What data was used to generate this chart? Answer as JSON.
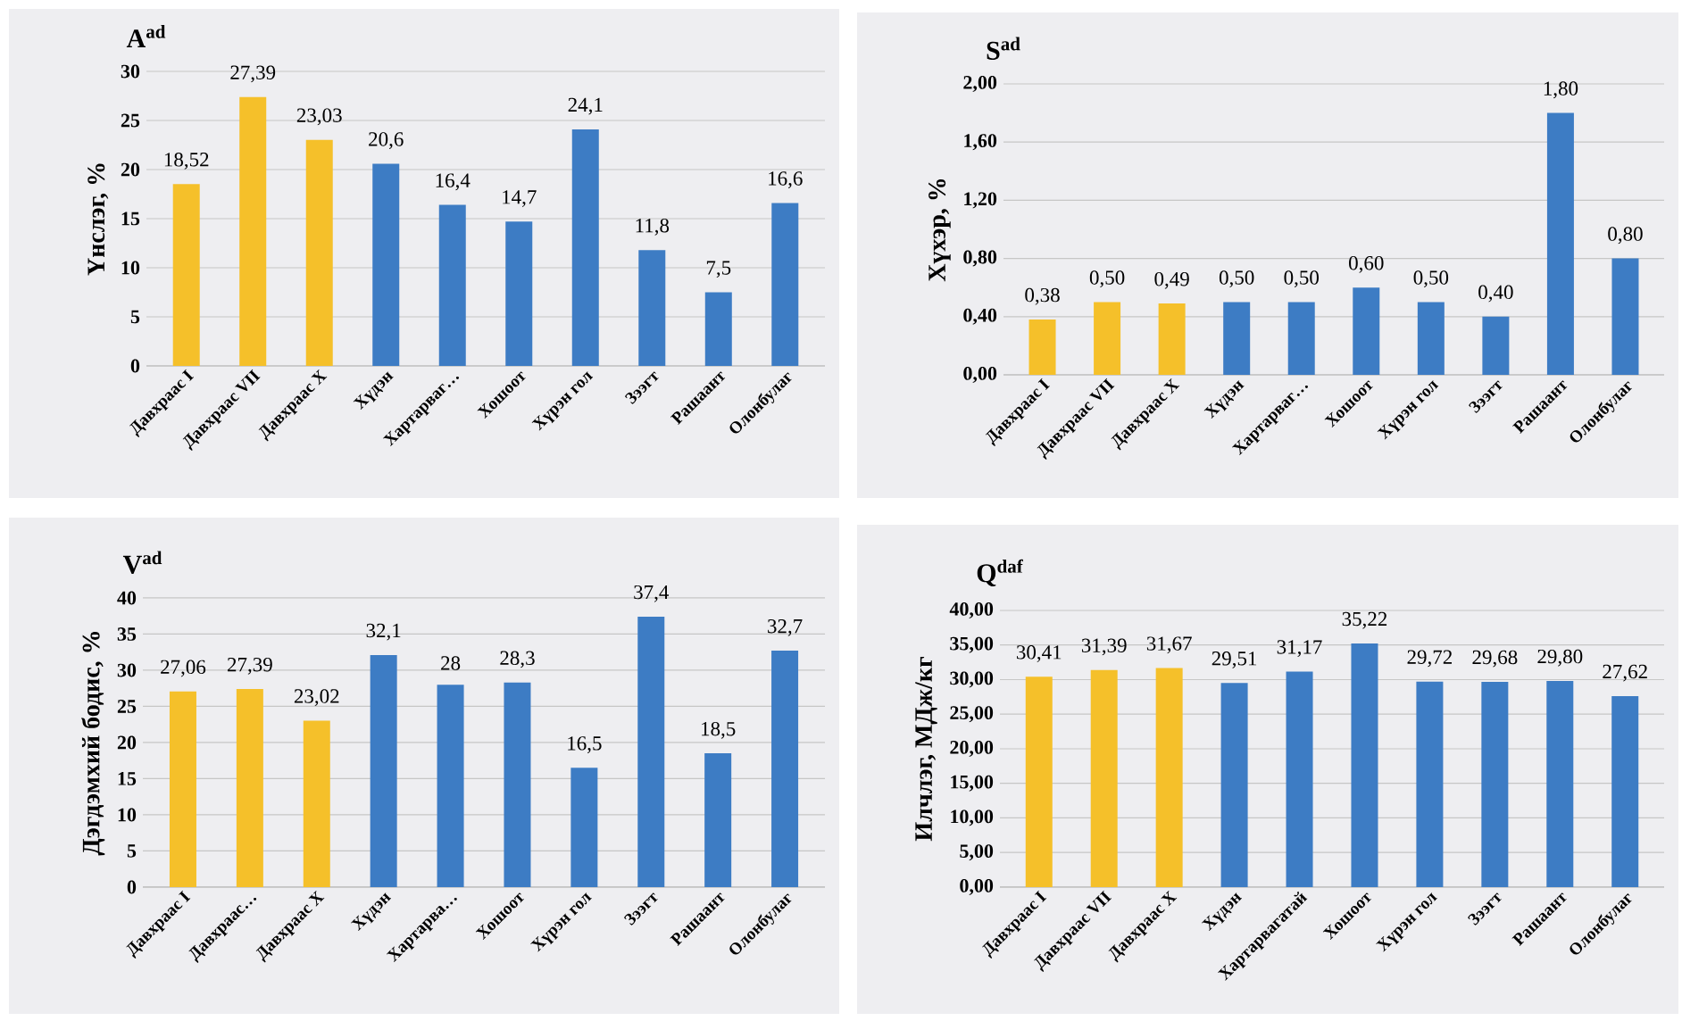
{
  "chart_data": [
    {
      "type": "bar",
      "title": "A$^{ad}$",
      "ylabel": "Үнслэг, %",
      "categories": [
        "Давхраас I",
        "Давхраас VII",
        "Давхраас X",
        "Хүдэн",
        "Хартарваг…",
        "Хошоот",
        "Хүрэн гол",
        "Зээгт",
        "Рашаант",
        "Олонбулаг"
      ],
      "values": [
        18.52,
        27.39,
        23.03,
        20.6,
        16.4,
        14.7,
        24.1,
        11.8,
        7.5,
        16.6
      ],
      "value_labels": [
        "18,52",
        "27,39",
        "23,03",
        "20,6",
        "16,4",
        "14,7",
        "24,1",
        "11,8",
        "7,5",
        "16,6"
      ],
      "colors": [
        "#f5c02a",
        "#f5c02a",
        "#f5c02a",
        "#3d7cc4",
        "#3d7cc4",
        "#3d7cc4",
        "#3d7cc4",
        "#3d7cc4",
        "#3d7cc4",
        "#3d7cc4"
      ],
      "ylim": [
        0,
        30
      ],
      "yticks": [
        0,
        5,
        10,
        15,
        20,
        25,
        30
      ],
      "grid": "y"
    },
    {
      "type": "bar",
      "title": "S$^{ad}$",
      "ylabel": "Хүхэр, %",
      "categories": [
        "Давхраас I",
        "Давхраас VII",
        "Давхраас X",
        "Хүдэн",
        "Хартарваг…",
        "Хошоот",
        "Хүрэн гол",
        "Зээгт",
        "Рашаант",
        "Олонбулаг"
      ],
      "values": [
        0.38,
        0.5,
        0.49,
        0.5,
        0.5,
        0.6,
        0.5,
        0.4,
        1.8,
        0.8
      ],
      "value_labels": [
        "0,38",
        "0,50",
        "0,49",
        "0,50",
        "0,50",
        "0,60",
        "0,50",
        "0,40",
        "1,80",
        "0,80"
      ],
      "colors": [
        "#f5c02a",
        "#f5c02a",
        "#f5c02a",
        "#3d7cc4",
        "#3d7cc4",
        "#3d7cc4",
        "#3d7cc4",
        "#3d7cc4",
        "#3d7cc4",
        "#3d7cc4"
      ],
      "ylim": [
        0,
        2
      ],
      "yticks": [
        {
          "value": 0,
          "label": "0,00"
        },
        {
          "value": 0.4,
          "label": "0,40"
        },
        {
          "value": 0.8,
          "label": "0,80"
        },
        {
          "value": 1.2,
          "label": "1,20"
        },
        {
          "value": 1.6,
          "label": "1,60"
        },
        {
          "value": 2,
          "label": "2,00"
        }
      ],
      "grid": "y"
    },
    {
      "type": "bar",
      "title": "V$^{ad}$",
      "ylabel": "Дэгдэмхий бодис, %",
      "categories": [
        "Давхраас I",
        "Давхраас…",
        "Давхраас X",
        "Хүдэн",
        "Хартарва…",
        "Хошоот",
        "Хүрэн гол",
        "Зээгт",
        "Рашаант",
        "Олонбулаг"
      ],
      "values": [
        27.06,
        27.39,
        23.02,
        32.1,
        28,
        28.3,
        16.5,
        37.4,
        18.5,
        32.7
      ],
      "value_labels": [
        "27,06",
        "27,39",
        "23,02",
        "32,1",
        "28",
        "28,3",
        "16,5",
        "37,4",
        "18,5",
        "32,7"
      ],
      "colors": [
        "#f5c02a",
        "#f5c02a",
        "#f5c02a",
        "#3d7cc4",
        "#3d7cc4",
        "#3d7cc4",
        "#3d7cc4",
        "#3d7cc4",
        "#3d7cc4",
        "#3d7cc4"
      ],
      "ylim": [
        0,
        40
      ],
      "yticks": [
        0,
        5,
        10,
        15,
        20,
        25,
        30,
        35,
        40
      ],
      "grid": "y"
    },
    {
      "type": "bar",
      "title": "Q$^{daf}$",
      "ylabel": "Илчлэг, МДж/кг",
      "categories": [
        "Давхраас I",
        "Давхраас VII",
        "Давхраас X",
        "Хүдэн",
        "Хартарвагатай",
        "Хошоот",
        "Хүрэн гол",
        "Зээгт",
        "Рашаант",
        "Олонбулаг"
      ],
      "values": [
        30.41,
        31.39,
        31.67,
        29.51,
        31.17,
        35.22,
        29.72,
        29.68,
        29.8,
        27.62
      ],
      "value_labels": [
        "30,41",
        "31,39",
        "31,67",
        "29,51",
        "31,17",
        "35,22",
        "29,72",
        "29,68",
        "29,80",
        "27,62"
      ],
      "colors": [
        "#f5c02a",
        "#f5c02a",
        "#f5c02a",
        "#3d7cc4",
        "#3d7cc4",
        "#3d7cc4",
        "#3d7cc4",
        "#3d7cc4",
        "#3d7cc4",
        "#3d7cc4"
      ],
      "ylim": [
        0,
        40
      ],
      "yticks": [
        {
          "value": 0,
          "label": "0,00"
        },
        {
          "value": 5,
          "label": "5,00"
        },
        {
          "value": 10,
          "label": "10,00"
        },
        {
          "value": 15,
          "label": "15,00"
        },
        {
          "value": 20,
          "label": "20,00"
        },
        {
          "value": 25,
          "label": "25,00"
        },
        {
          "value": 30,
          "label": "30,00"
        },
        {
          "value": 35,
          "label": "35,00"
        },
        {
          "value": 40,
          "label": "40,00"
        }
      ],
      "grid": "y"
    }
  ]
}
